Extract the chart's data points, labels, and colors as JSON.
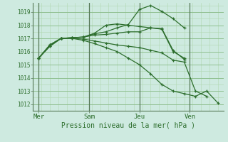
{
  "xlabel": "Pression niveau de la mer( hPa )",
  "ylim": [
    1011.5,
    1019.7
  ],
  "yticks": [
    1012,
    1013,
    1014,
    1015,
    1016,
    1017,
    1018,
    1019
  ],
  "bg_color": "#ceeae0",
  "line_color": "#2d6e2d",
  "grid_color_minor": "#b0d8b0",
  "grid_color_major": "#88bb88",
  "vline_color": "#557755",
  "xtick_labels": [
    "Mer",
    "Sam",
    "Jeu",
    "Ven"
  ],
  "xtick_positions": [
    0,
    18,
    36,
    54
  ],
  "xlim": [
    -2,
    66
  ],
  "lines": [
    {
      "x": [
        0,
        4,
        8,
        12,
        16,
        20,
        24,
        28,
        32,
        36,
        40,
        44,
        48,
        52,
        56,
        60,
        64
      ],
      "y": [
        1015.5,
        1016.4,
        1017.0,
        1017.05,
        1017.1,
        1017.35,
        1017.5,
        1017.8,
        1018.05,
        1019.2,
        1019.5,
        1019.05,
        1018.5,
        1017.8,
        null,
        null,
        null
      ]
    },
    {
      "x": [
        0,
        4,
        8,
        12,
        16,
        20,
        24,
        28,
        32,
        36,
        40,
        44,
        48,
        52,
        56,
        60,
        64
      ],
      "y": [
        1015.5,
        1016.4,
        1017.0,
        1017.05,
        1017.1,
        1017.4,
        1018.0,
        1018.1,
        1018.0,
        1017.9,
        1017.8,
        1017.7,
        1016.0,
        1015.5,
        null,
        null,
        null
      ]
    },
    {
      "x": [
        0,
        4,
        8,
        12,
        16,
        20,
        24,
        28,
        32,
        36,
        40,
        44,
        48,
        52,
        56,
        60,
        64
      ],
      "y": [
        1015.5,
        1016.5,
        1017.0,
        1017.05,
        1017.1,
        1017.25,
        1017.3,
        1017.4,
        1017.5,
        1017.5,
        1017.8,
        1017.75,
        1016.1,
        1015.4,
        null,
        null,
        null
      ]
    },
    {
      "x": [
        0,
        4,
        8,
        12,
        16,
        20,
        24,
        28,
        32,
        36,
        40,
        44,
        48,
        52,
        56,
        60,
        64
      ],
      "y": [
        1015.5,
        1016.5,
        1017.0,
        1017.0,
        1016.95,
        1016.8,
        1016.65,
        1016.5,
        1016.4,
        1016.3,
        1016.1,
        1015.9,
        1015.35,
        1015.2,
        1013.0,
        1012.6,
        null
      ]
    },
    {
      "x": [
        0,
        4,
        8,
        12,
        16,
        20,
        24,
        28,
        32,
        36,
        40,
        44,
        48,
        52,
        56,
        60,
        64
      ],
      "y": [
        1015.5,
        1016.5,
        1017.0,
        1017.0,
        1016.85,
        1016.6,
        1016.3,
        1016.0,
        1015.5,
        1015.0,
        1014.3,
        1013.5,
        1013.0,
        1012.8,
        1012.6,
        1013.0,
        1012.1
      ]
    }
  ],
  "vlines_x": [
    0,
    18,
    36,
    54
  ]
}
